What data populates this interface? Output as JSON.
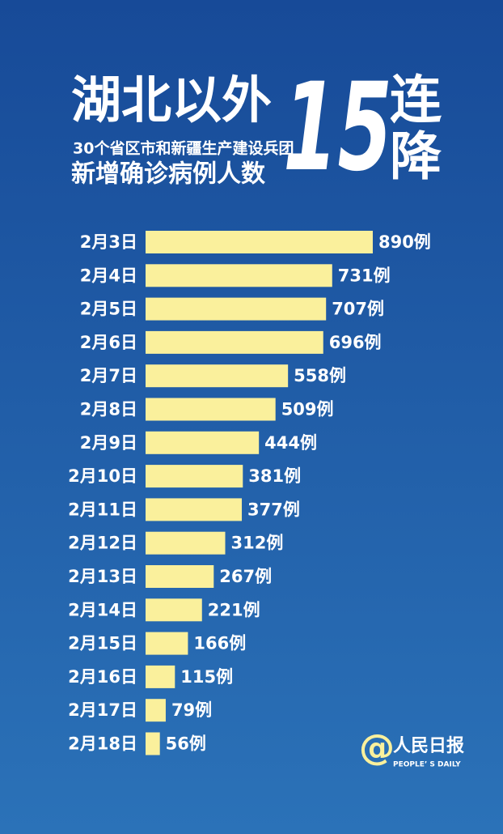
{
  "chart_data": {
    "type": "bar",
    "orientation": "horizontal",
    "title": [
      "湖北以外",
      "30个省区市和新疆生产建设兵团",
      "新增确诊病例人数"
    ],
    "badge": [
      "15",
      "连",
      "降"
    ],
    "categories": [
      "2月3日",
      "2月4日",
      "2月5日",
      "2月6日",
      "2月7日",
      "2月8日",
      "2月9日",
      "2月10日",
      "2月11日",
      "2月12日",
      "2月13日",
      "2月14日",
      "2月15日",
      "2月16日",
      "2月17日",
      "2月18日"
    ],
    "values": [
      890,
      731,
      707,
      696,
      558,
      509,
      444,
      381,
      377,
      312,
      267,
      221,
      166,
      115,
      79,
      56
    ],
    "value_labels": [
      "890例",
      "731例",
      "707例",
      "696例",
      "558例",
      "509例",
      "444例",
      "381例",
      "377例",
      "312例",
      "267例",
      "221例",
      "166例",
      "115例",
      "79例",
      "56例"
    ],
    "color": "#faf09c",
    "source": {
      "mark": "@",
      "name": "人民日报",
      "name_en": "PEOPLE’ S DAILY"
    }
  }
}
